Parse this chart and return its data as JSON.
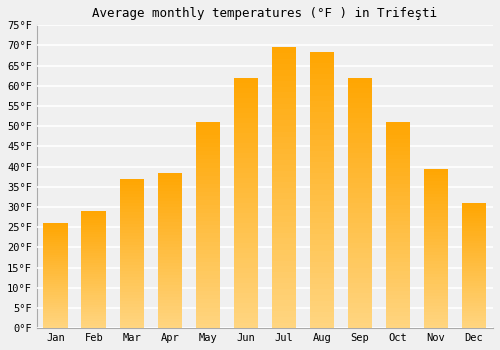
{
  "title": "Average monthly temperatures (°F ) in Trifeşti",
  "months": [
    "Jan",
    "Feb",
    "Mar",
    "Apr",
    "May",
    "Jun",
    "Jul",
    "Aug",
    "Sep",
    "Oct",
    "Nov",
    "Dec"
  ],
  "values": [
    26.0,
    29.0,
    37.0,
    38.5,
    51.0,
    62.0,
    69.5,
    68.5,
    62.0,
    51.0,
    39.5,
    31.0
  ],
  "bar_color_light": "#FFD580",
  "bar_color_dark": "#FFA500",
  "ylim": [
    0,
    75
  ],
  "yticks": [
    0,
    5,
    10,
    15,
    20,
    25,
    30,
    35,
    40,
    45,
    50,
    55,
    60,
    65,
    70,
    75
  ],
  "ytick_labels": [
    "0°F",
    "5°F",
    "10°F",
    "15°F",
    "20°F",
    "25°F",
    "30°F",
    "35°F",
    "40°F",
    "45°F",
    "50°F",
    "55°F",
    "60°F",
    "65°F",
    "70°F",
    "75°F"
  ],
  "background_color": "#f0f0f0",
  "grid_color": "#ffffff",
  "title_fontsize": 9,
  "tick_fontsize": 7.5
}
